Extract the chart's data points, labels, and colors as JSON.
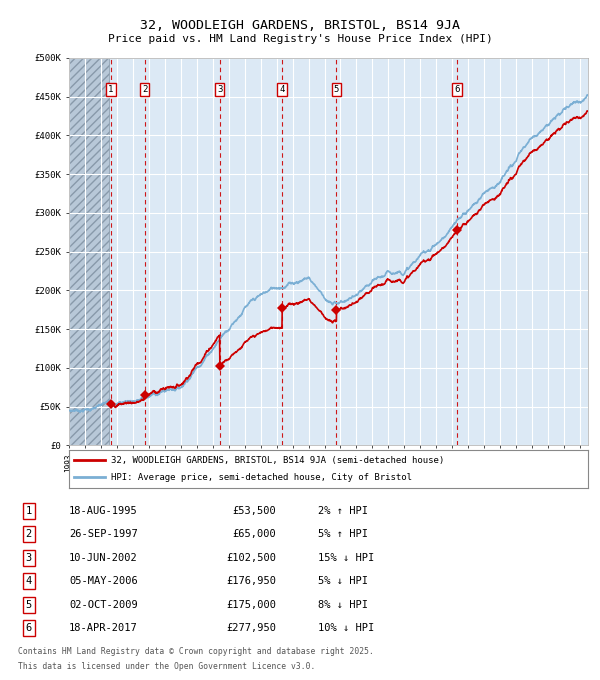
{
  "title": "32, WOODLEIGH GARDENS, BRISTOL, BS14 9JA",
  "subtitle": "Price paid vs. HM Land Registry's House Price Index (HPI)",
  "legend_line1": "32, WOODLEIGH GARDENS, BRISTOL, BS14 9JA (semi-detached house)",
  "legend_line2": "HPI: Average price, semi-detached house, City of Bristol",
  "footnote1": "Contains HM Land Registry data © Crown copyright and database right 2025.",
  "footnote2": "This data is licensed under the Open Government Licence v3.0.",
  "transactions": [
    {
      "num": 1,
      "date": "18-AUG-1995",
      "price": 53500,
      "rel": "2% ↑ HPI",
      "year": 1995.62
    },
    {
      "num": 2,
      "date": "26-SEP-1997",
      "price": 65000,
      "rel": "5% ↑ HPI",
      "year": 1997.73
    },
    {
      "num": 3,
      "date": "10-JUN-2002",
      "price": 102500,
      "rel": "15% ↓ HPI",
      "year": 2002.44
    },
    {
      "num": 4,
      "date": "05-MAY-2006",
      "price": 176950,
      "rel": "5% ↓ HPI",
      "year": 2006.34
    },
    {
      "num": 5,
      "date": "02-OCT-2009",
      "price": 175000,
      "rel": "8% ↓ HPI",
      "year": 2009.75
    },
    {
      "num": 6,
      "date": "18-APR-2017",
      "price": 277950,
      "rel": "10% ↓ HPI",
      "year": 2017.29
    }
  ],
  "ylim": [
    0,
    500000
  ],
  "yticks": [
    0,
    50000,
    100000,
    150000,
    200000,
    250000,
    300000,
    350000,
    400000,
    450000,
    500000
  ],
  "ytick_labels": [
    "£0",
    "£50K",
    "£100K",
    "£150K",
    "£200K",
    "£250K",
    "£300K",
    "£350K",
    "£400K",
    "£450K",
    "£500K"
  ],
  "xmin": 1993,
  "xmax": 2025.5,
  "hatch_end": 1995.5,
  "chart_bg": "#dce9f5",
  "hatch_bg": "#b8c8d8",
  "grid_color": "#ffffff",
  "red_line_color": "#cc0000",
  "blue_line_color": "#7bafd4",
  "dashed_line_color": "#cc0000",
  "marker_color": "#cc0000",
  "box_color": "#cc0000"
}
